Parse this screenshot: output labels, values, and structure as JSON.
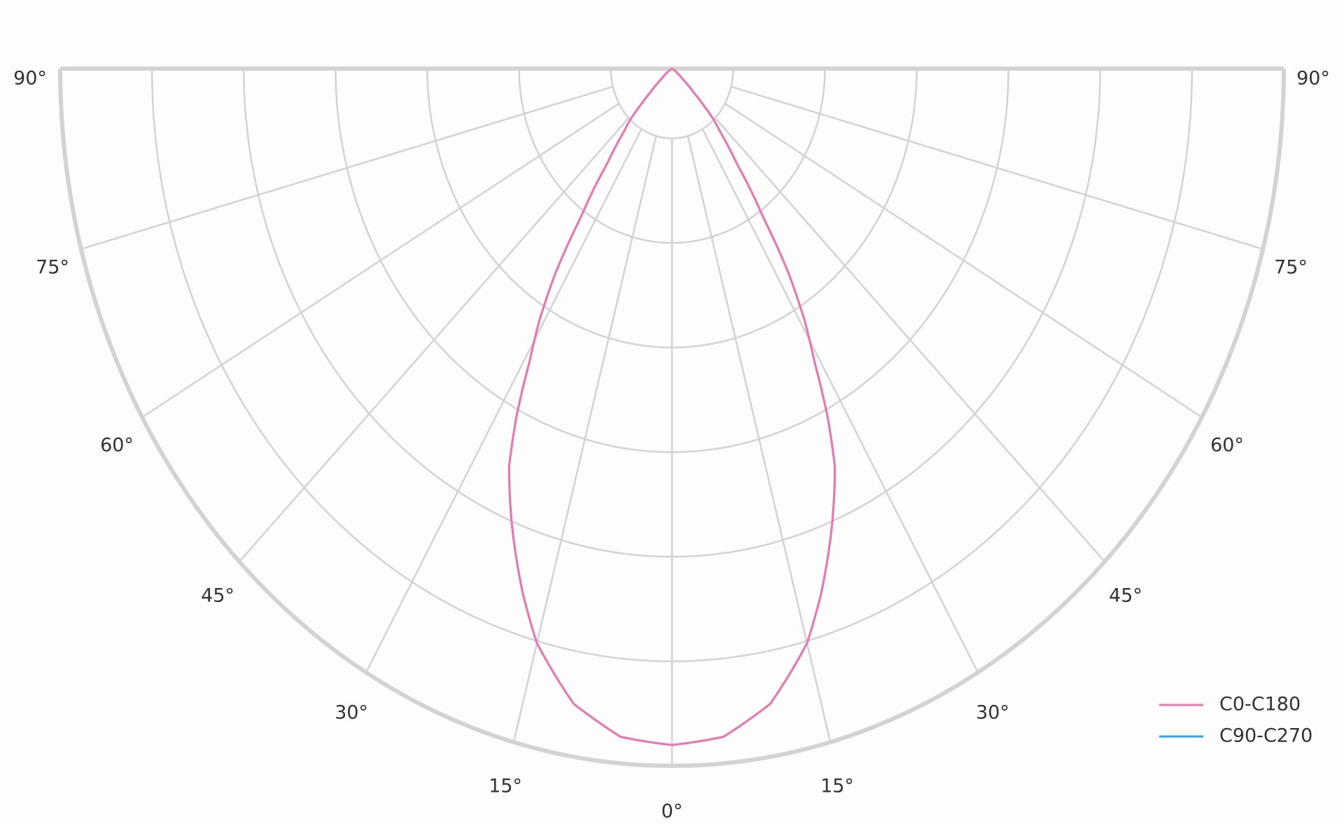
{
  "chart_data": {
    "type": "polar",
    "subtype": "luminous-intensity-distribution",
    "angle_ticks": [
      "90°",
      "75°",
      "60°",
      "45°",
      "30°",
      "15°",
      "0°",
      "15°",
      "30°",
      "45°",
      "60°",
      "75°",
      "90°"
    ],
    "angle_tick_values": [
      -90,
      -75,
      -60,
      -45,
      -30,
      -15,
      0,
      15,
      30,
      45,
      60,
      75,
      90
    ],
    "radial_gridlines_relative": [
      0.1,
      0.25,
      0.4,
      0.55,
      0.7,
      0.85,
      1.0
    ],
    "radial_tick_labels_shown": false,
    "grid": true,
    "legend_position": "bottom-right",
    "series": [
      {
        "name": "C0-C180",
        "color": "#f075aa",
        "angles": [
          0,
          5,
          10,
          15,
          18,
          22,
          25,
          27,
          29,
          31,
          33,
          35,
          38,
          41,
          43,
          46,
          50,
          60,
          90
        ],
        "relative_intensity": [
          0.97,
          0.962,
          0.925,
          0.853,
          0.79,
          0.7,
          0.63,
          0.56,
          0.48,
          0.42,
          0.35,
          0.26,
          0.17,
          0.12,
          0.1,
          0.05,
          0.02,
          0,
          0
        ]
      },
      {
        "name": "C90-C270",
        "color": "#2ea3f2",
        "angles": [
          0,
          5,
          10,
          15,
          18,
          22,
          25,
          27,
          29,
          31,
          33,
          35,
          38,
          41,
          43,
          46,
          50,
          60,
          90
        ],
        "relative_intensity": [
          0.97,
          0.962,
          0.925,
          0.853,
          0.79,
          0.7,
          0.63,
          0.56,
          0.48,
          0.42,
          0.35,
          0.26,
          0.17,
          0.12,
          0.1,
          0.05,
          0.02,
          0,
          0
        ]
      }
    ]
  }
}
